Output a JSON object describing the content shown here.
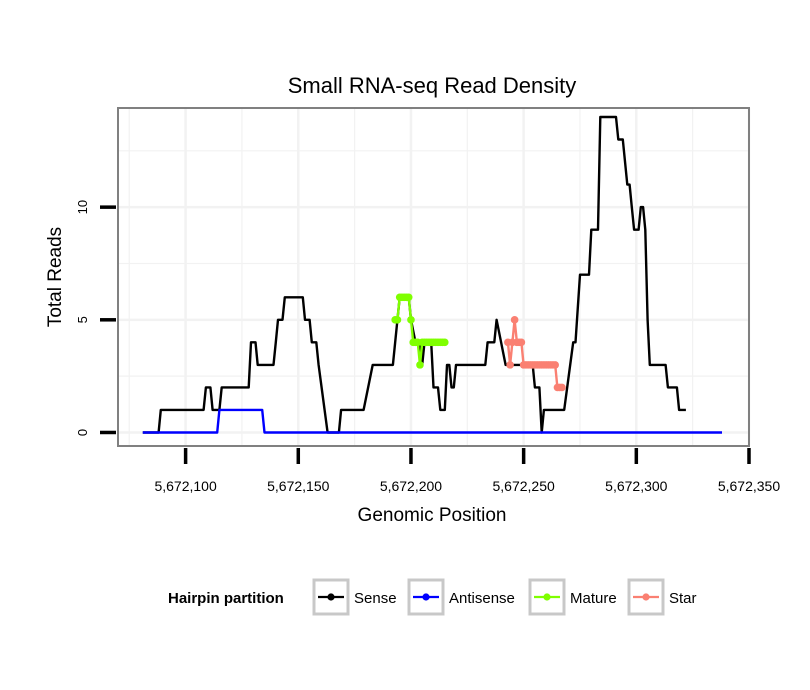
{
  "chart_data": {
    "type": "line",
    "title": "Small RNA-seq Read Density",
    "xlabel": "Genomic Position",
    "ylabel": "Total Reads",
    "xlim": [
      5672070,
      5672350
    ],
    "ylim": [
      -0.6,
      14.4
    ],
    "xticks": [
      5672100,
      5672150,
      5672200,
      5672250,
      5672300,
      5672350
    ],
    "xtick_labels": [
      "5,672,100",
      "5,672,150",
      "5,672,200",
      "5,672,250",
      "5,672,300",
      "5,672,350"
    ],
    "yticks": [
      0,
      5,
      10
    ],
    "ytick_labels": [
      "0",
      "5",
      "10"
    ],
    "grid": true,
    "legend": {
      "title": "Hairpin partition",
      "position": "bottom",
      "entries": [
        "Sense",
        "Antisense",
        "Mature",
        "Star"
      ]
    },
    "colors": {
      "Sense": "#000000",
      "Antisense": "#0000ff",
      "Mature": "#7fff00",
      "Star": "#fa8072"
    },
    "series": [
      {
        "name": "Sense",
        "style": "line",
        "points": [
          [
            5672081,
            0
          ],
          [
            5672088,
            0
          ],
          [
            5672089,
            1
          ],
          [
            5672108,
            1
          ],
          [
            5672109,
            2
          ],
          [
            5672111,
            2
          ],
          [
            5672112,
            1
          ],
          [
            5672115,
            1
          ],
          [
            5672116,
            2
          ],
          [
            5672128,
            2
          ],
          [
            5672129,
            4
          ],
          [
            5672131,
            4
          ],
          [
            5672132,
            3
          ],
          [
            5672139,
            3
          ],
          [
            5672140,
            4
          ],
          [
            5672141,
            5
          ],
          [
            5672143,
            5
          ],
          [
            5672144,
            6
          ],
          [
            5672152,
            6
          ],
          [
            5672153,
            5
          ],
          [
            5672155,
            5
          ],
          [
            5672156,
            4
          ],
          [
            5672158,
            4
          ],
          [
            5672159,
            3
          ],
          [
            5672163,
            0
          ],
          [
            5672168,
            0
          ],
          [
            5672169,
            1
          ],
          [
            5672179,
            1
          ],
          [
            5672183,
            3
          ],
          [
            5672192,
            3
          ],
          [
            5672195,
            6
          ],
          [
            5672199,
            6
          ],
          [
            5672200,
            5
          ],
          [
            5672202,
            4
          ],
          [
            5672204,
            4
          ],
          [
            5672205,
            3
          ],
          [
            5672206,
            4
          ],
          [
            5672209,
            4
          ],
          [
            5672210,
            2
          ],
          [
            5672212,
            2
          ],
          [
            5672213,
            1
          ],
          [
            5672215,
            1
          ],
          [
            5672216,
            3
          ],
          [
            5672217,
            3
          ],
          [
            5672218,
            2
          ],
          [
            5672219,
            2
          ],
          [
            5672220,
            3
          ],
          [
            5672233,
            3
          ],
          [
            5672234,
            4
          ],
          [
            5672237,
            4
          ],
          [
            5672238,
            5
          ],
          [
            5672240,
            4
          ],
          [
            5672242,
            3
          ],
          [
            5672254,
            3
          ],
          [
            5672255,
            2
          ],
          [
            5672257,
            2
          ],
          [
            5672258,
            0
          ],
          [
            5672259,
            1
          ],
          [
            5672268,
            1
          ],
          [
            5672272,
            4
          ],
          [
            5672273,
            4
          ],
          [
            5672275,
            7
          ],
          [
            5672279,
            7
          ],
          [
            5672280,
            9
          ],
          [
            5672283,
            9
          ],
          [
            5672284,
            14
          ],
          [
            5672291,
            14
          ],
          [
            5672292,
            13
          ],
          [
            5672294,
            13
          ],
          [
            5672296,
            11
          ],
          [
            5672297,
            11
          ],
          [
            5672298,
            10
          ],
          [
            5672299,
            9
          ],
          [
            5672301,
            9
          ],
          [
            5672302,
            10
          ],
          [
            5672303,
            10
          ],
          [
            5672304,
            9
          ],
          [
            5672305,
            5
          ],
          [
            5672306,
            3
          ],
          [
            5672313,
            3
          ],
          [
            5672314,
            2
          ],
          [
            5672318,
            2
          ],
          [
            5672319,
            1
          ],
          [
            5672322,
            1
          ]
        ]
      },
      {
        "name": "Antisense",
        "style": "line",
        "points": [
          [
            5672081,
            0
          ],
          [
            5672114,
            0
          ],
          [
            5672115,
            1
          ],
          [
            5672134,
            1
          ],
          [
            5672135,
            0
          ],
          [
            5672338,
            0
          ]
        ]
      },
      {
        "name": "Mature",
        "style": "line+points",
        "points": [
          [
            5672193,
            5
          ],
          [
            5672194,
            5
          ],
          [
            5672195,
            6
          ],
          [
            5672196,
            6
          ],
          [
            5672197,
            6
          ],
          [
            5672198,
            6
          ],
          [
            5672199,
            6
          ],
          [
            5672200,
            5
          ],
          [
            5672201,
            4
          ],
          [
            5672202,
            4
          ],
          [
            5672203,
            4
          ],
          [
            5672204,
            3
          ],
          [
            5672205,
            4
          ],
          [
            5672206,
            4
          ],
          [
            5672207,
            4
          ],
          [
            5672208,
            4
          ],
          [
            5672209,
            4
          ],
          [
            5672210,
            4
          ],
          [
            5672211,
            4
          ],
          [
            5672212,
            4
          ],
          [
            5672213,
            4
          ],
          [
            5672214,
            4
          ],
          [
            5672215,
            4
          ]
        ]
      },
      {
        "name": "Star",
        "style": "line+points",
        "points": [
          [
            5672243,
            4
          ],
          [
            5672244,
            3
          ],
          [
            5672245,
            4
          ],
          [
            5672246,
            5
          ],
          [
            5672247,
            4
          ],
          [
            5672248,
            4
          ],
          [
            5672249,
            4
          ],
          [
            5672250,
            3
          ],
          [
            5672251,
            3
          ],
          [
            5672252,
            3
          ],
          [
            5672253,
            3
          ],
          [
            5672254,
            3
          ],
          [
            5672255,
            3
          ],
          [
            5672256,
            3
          ],
          [
            5672257,
            3
          ],
          [
            5672258,
            3
          ],
          [
            5672259,
            3
          ],
          [
            5672260,
            3
          ],
          [
            5672261,
            3
          ],
          [
            5672262,
            3
          ],
          [
            5672263,
            3
          ],
          [
            5672264,
            3
          ],
          [
            5672265,
            2
          ],
          [
            5672266,
            2
          ],
          [
            5672267,
            2
          ]
        ]
      }
    ]
  }
}
